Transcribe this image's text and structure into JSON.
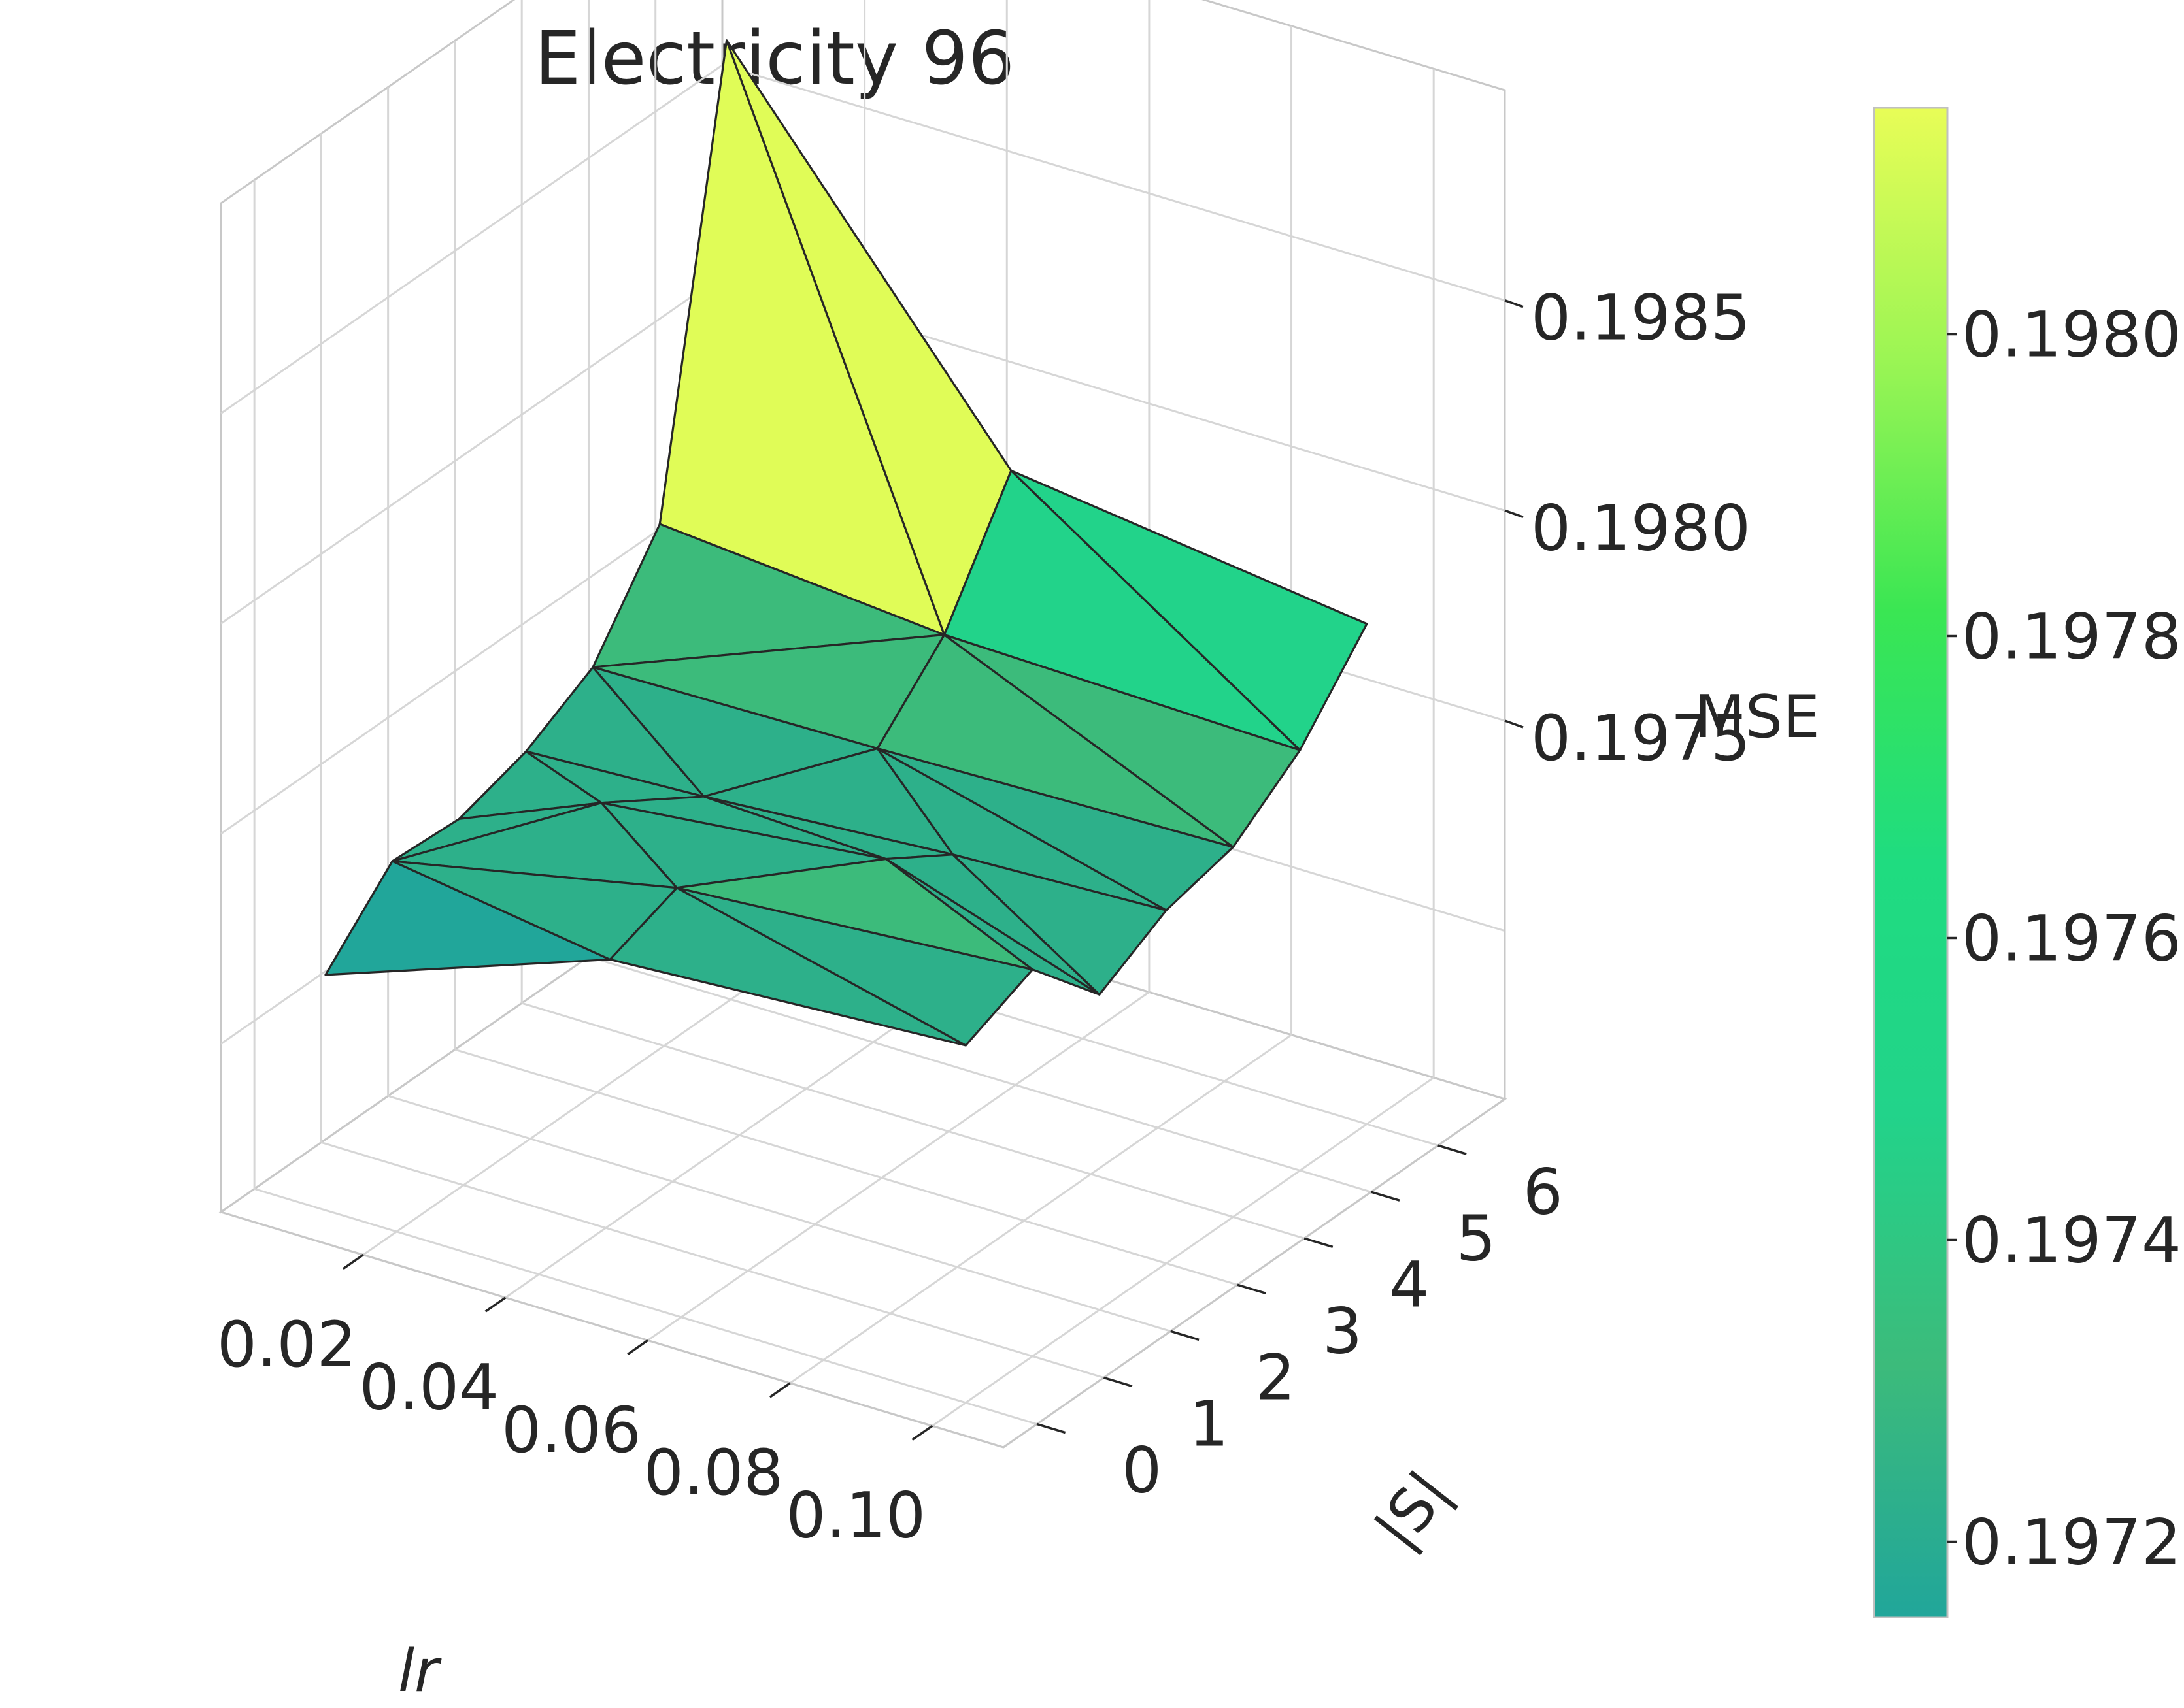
{
  "chart_data": {
    "type": "surface3d",
    "title": "Electricity 96",
    "xlabel": "lr",
    "ylabel": "|S|",
    "zlabel": "MSE",
    "x_ticks": [
      "0.02",
      "0.04",
      "0.06",
      "0.08",
      "0.10"
    ],
    "y_ticks": [
      "0",
      "1",
      "2",
      "3",
      "4",
      "5",
      "6"
    ],
    "z_ticks": [
      "0.1975",
      "0.1980",
      "0.1985"
    ],
    "xlim": [
      0.0,
      0.11
    ],
    "ylim": [
      -0.5,
      7.0
    ],
    "zlim": [
      0.1966,
      0.199
    ],
    "points": [
      {
        "lr": 0.01,
        "S": 0,
        "mse": 0.19716
      },
      {
        "lr": 0.05,
        "S": 0,
        "mse": 0.1974
      },
      {
        "lr": 0.1,
        "S": 0,
        "mse": 0.19745
      },
      {
        "lr": 0.01,
        "S": 1,
        "mse": 0.19732
      },
      {
        "lr": 0.05,
        "S": 1,
        "mse": 0.19746
      },
      {
        "lr": 0.1,
        "S": 1,
        "mse": 0.19752
      },
      {
        "lr": 0.01,
        "S": 2,
        "mse": 0.19731
      },
      {
        "lr": 0.03,
        "S": 2,
        "mse": 0.19745
      },
      {
        "lr": 0.07,
        "S": 2,
        "mse": 0.19752
      },
      {
        "lr": 0.1,
        "S": 2,
        "mse": 0.19735
      },
      {
        "lr": 0.01,
        "S": 3,
        "mse": 0.19736
      },
      {
        "lr": 0.035,
        "S": 3,
        "mse": 0.19738
      },
      {
        "lr": 0.07,
        "S": 3,
        "mse": 0.19742
      },
      {
        "lr": 0.1,
        "S": 3,
        "mse": 0.19744
      },
      {
        "lr": 0.01,
        "S": 4,
        "mse": 0.19745
      },
      {
        "lr": 0.05,
        "S": 4,
        "mse": 0.19746
      },
      {
        "lr": 0.1,
        "S": 4,
        "mse": 0.19748
      },
      {
        "lr": 0.01,
        "S": 5,
        "mse": 0.19768
      },
      {
        "lr": 0.05,
        "S": 5,
        "mse": 0.19762
      },
      {
        "lr": 0.1,
        "S": 5,
        "mse": 0.1976
      },
      {
        "lr": 0.01,
        "S": 6,
        "mse": 0.19872
      },
      {
        "lr": 0.05,
        "S": 6,
        "mse": 0.1979
      },
      {
        "lr": 0.1,
        "S": 6,
        "mse": 0.19779
      }
    ],
    "triangles": [
      [
        0,
        1,
        3
      ],
      [
        1,
        4,
        3
      ],
      [
        1,
        2,
        4
      ],
      [
        2,
        5,
        4
      ],
      [
        3,
        4,
        7
      ],
      [
        3,
        7,
        6
      ],
      [
        4,
        8,
        7
      ],
      [
        4,
        5,
        8
      ],
      [
        5,
        9,
        8
      ],
      [
        6,
        7,
        10
      ],
      [
        7,
        11,
        10
      ],
      [
        7,
        8,
        11
      ],
      [
        8,
        12,
        11
      ],
      [
        8,
        9,
        12
      ],
      [
        9,
        13,
        12
      ],
      [
        10,
        11,
        14
      ],
      [
        11,
        15,
        14
      ],
      [
        11,
        12,
        15
      ],
      [
        12,
        13,
        15
      ],
      [
        13,
        16,
        15
      ],
      [
        14,
        15,
        18
      ],
      [
        14,
        18,
        17
      ],
      [
        15,
        16,
        18
      ],
      [
        16,
        19,
        18
      ],
      [
        17,
        18,
        20
      ],
      [
        18,
        21,
        20
      ],
      [
        18,
        19,
        21
      ],
      [
        19,
        22,
        21
      ]
    ],
    "colormap": [
      "#21a69a",
      "#2db08a",
      "#3cbb7b",
      "#22d38a",
      "#29dc64",
      "#e0fc57"
    ]
  },
  "colorbar": {
    "ticks": [
      "0.1972",
      "0.1974",
      "0.1976",
      "0.1978",
      "0.1980"
    ],
    "range": [
      0.19715,
      0.19815
    ],
    "gradient": [
      "#21a69a",
      "#3cbb7b",
      "#22d38a",
      "#1fdc80",
      "#3ae653",
      "#9bf554",
      "#e8fd57"
    ]
  }
}
